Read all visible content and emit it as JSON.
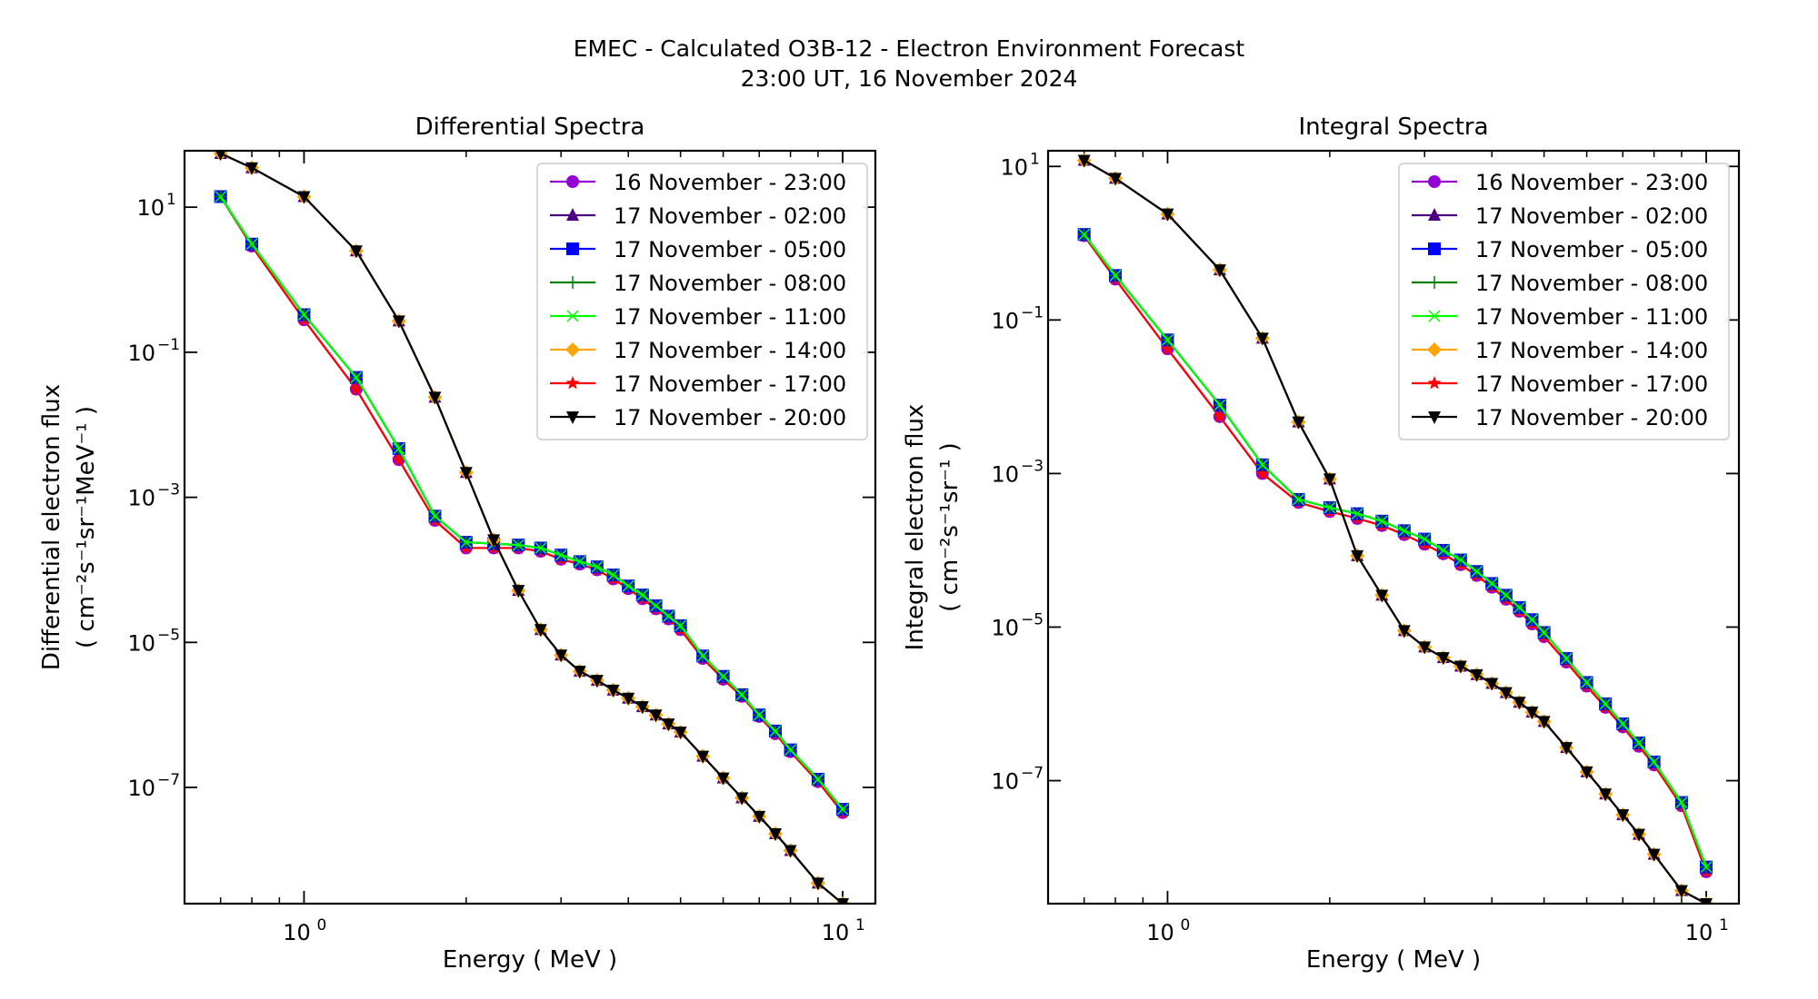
{
  "figure": {
    "title_line1": "EMEC - Calculated O3B-12 - Electron Environment Forecast",
    "title_line2": "23:00 UT, 16 November 2024"
  },
  "series_styles": [
    {
      "name": "16 November - 23:00",
      "color": "#9400d3",
      "marker": "circle"
    },
    {
      "name": "17 November - 02:00",
      "color": "#4b0082",
      "marker": "triangle-up"
    },
    {
      "name": "17 November - 05:00",
      "color": "#0000ff",
      "marker": "square"
    },
    {
      "name": "17 November - 08:00",
      "color": "#008000",
      "marker": "plus"
    },
    {
      "name": "17 November - 11:00",
      "color": "#00ff00",
      "marker": "x"
    },
    {
      "name": "17 November - 14:00",
      "color": "#ffa500",
      "marker": "diamond"
    },
    {
      "name": "17 November - 17:00",
      "color": "#ff0000",
      "marker": "star"
    },
    {
      "name": "17 November - 20:00",
      "color": "#000000",
      "marker": "triangle-down"
    }
  ],
  "chart_data": [
    {
      "type": "line",
      "title": "Differential Spectra",
      "xlabel": "Energy ( MeV )",
      "ylabel_line1": "Differential electron flux",
      "ylabel_line2": "( cm⁻²s⁻¹sr⁻¹MeV⁻¹ )",
      "xscale": "log",
      "yscale": "log",
      "xlim": [
        0.6,
        11.5
      ],
      "ylim": [
        2.5e-09,
        60
      ],
      "xticks": [
        {
          "value": 1,
          "label": "10",
          "exp": "0"
        },
        {
          "value": 10,
          "label": "10",
          "exp": "1"
        }
      ],
      "yticks": [
        {
          "value": 10,
          "label": "10",
          "exp": "1"
        },
        {
          "value": 0.1,
          "label": "10",
          "exp": "−1"
        },
        {
          "value": 0.001,
          "label": "10",
          "exp": "−3"
        },
        {
          "value": 1e-05,
          "label": "10",
          "exp": "−5"
        },
        {
          "value": 1e-07,
          "label": "10",
          "exp": "−7"
        }
      ],
      "legend_position": "upper-right",
      "groups": [
        {
          "members": [
            "16 November - 23:00",
            "17 November - 17:00"
          ],
          "x": [
            0.7,
            0.8,
            1.0,
            1.25,
            1.5,
            1.75,
            2.0,
            2.25,
            2.5,
            2.75,
            3.0,
            3.25,
            3.5,
            3.75,
            4.0,
            4.25,
            4.5,
            4.75,
            5.0,
            5.5,
            6.0,
            6.5,
            7.0,
            7.5,
            8.0,
            9.0,
            10.0
          ],
          "y": [
            14,
            2.9,
            0.28,
            0.031,
            0.0033,
            0.00048,
            0.0002,
            0.0002,
            0.0002,
            0.00018,
            0.00014,
            0.00012,
            0.0001,
            7.5e-05,
            5.5e-05,
            4e-05,
            2.9e-05,
            2.1e-05,
            1.5e-05,
            6e-06,
            3.1e-06,
            1.8e-06,
            9.5e-07,
            5.5e-07,
            3.1e-07,
            1.2e-07,
            4.5e-08
          ]
        },
        {
          "members": [
            "17 November - 05:00",
            "17 November - 08:00",
            "17 November - 11:00"
          ],
          "x": [
            0.7,
            0.8,
            1.0,
            1.25,
            1.5,
            1.75,
            2.0,
            2.25,
            2.5,
            2.75,
            3.0,
            3.25,
            3.5,
            3.75,
            4.0,
            4.25,
            4.5,
            4.75,
            5.0,
            5.5,
            6.0,
            6.5,
            7.0,
            7.5,
            8.0,
            9.0,
            10.0
          ],
          "y": [
            14,
            3.1,
            0.33,
            0.045,
            0.0047,
            0.00055,
            0.00024,
            0.00023,
            0.00022,
            0.0002,
            0.00016,
            0.00013,
            0.00011,
            8.5e-05,
            6e-05,
            4.5e-05,
            3.2e-05,
            2.3e-05,
            1.7e-05,
            6.5e-06,
            3.4e-06,
            1.9e-06,
            1e-06,
            6e-07,
            3.3e-07,
            1.3e-07,
            5e-08
          ]
        },
        {
          "members": [
            "17 November - 02:00",
            "17 November - 14:00",
            "17 November - 20:00"
          ],
          "x": [
            0.7,
            0.8,
            1.0,
            1.25,
            1.5,
            1.75,
            2.0,
            2.25,
            2.5,
            2.75,
            3.0,
            3.25,
            3.5,
            3.75,
            4.0,
            4.25,
            4.5,
            4.75,
            5.0,
            5.5,
            6.0,
            6.5,
            7.0,
            7.5,
            8.0,
            9.0,
            10.0
          ],
          "y": [
            55,
            35,
            14,
            2.5,
            0.27,
            0.024,
            0.0022,
            0.00026,
            5.2e-05,
            1.5e-05,
            6.7e-06,
            4e-06,
            3e-06,
            2.2e-06,
            1.7e-06,
            1.3e-06,
            1e-06,
            7.5e-07,
            5.8e-07,
            2.7e-07,
            1.35e-07,
            7.2e-08,
            4e-08,
            2.3e-08,
            1.35e-08,
            4.8e-09,
            2.5e-09
          ]
        }
      ]
    },
    {
      "type": "line",
      "title": "Integral Spectra",
      "xlabel": "Energy ( MeV )",
      "ylabel_line1": "Integral electron flux",
      "ylabel_line2": "( cm⁻²s⁻¹sr⁻¹ )",
      "xscale": "log",
      "yscale": "log",
      "xlim": [
        0.6,
        11.5
      ],
      "ylim": [
        2.5e-09,
        16
      ],
      "xticks": [
        {
          "value": 1,
          "label": "10",
          "exp": "0"
        },
        {
          "value": 10,
          "label": "10",
          "exp": "1"
        }
      ],
      "yticks": [
        {
          "value": 10,
          "label": "10",
          "exp": "1"
        },
        {
          "value": 0.1,
          "label": "10",
          "exp": "−1"
        },
        {
          "value": 0.001,
          "label": "10",
          "exp": "−3"
        },
        {
          "value": 1e-05,
          "label": "10",
          "exp": "−5"
        },
        {
          "value": 1e-07,
          "label": "10",
          "exp": "−7"
        }
      ],
      "legend_position": "upper-right",
      "groups": [
        {
          "members": [
            "16 November - 23:00",
            "17 November - 17:00"
          ],
          "x": [
            0.7,
            0.8,
            1.0,
            1.25,
            1.5,
            1.75,
            2.0,
            2.25,
            2.5,
            2.75,
            3.0,
            3.25,
            3.5,
            3.75,
            4.0,
            4.25,
            4.5,
            4.75,
            5.0,
            5.5,
            6.0,
            6.5,
            7.0,
            7.5,
            8.0,
            9.0,
            10.0
          ],
          "y": [
            1.25,
            0.34,
            0.042,
            0.0055,
            0.001,
            0.00042,
            0.00032,
            0.00026,
            0.00021,
            0.00016,
            0.00012,
            9e-05,
            6.5e-05,
            4.7e-05,
            3.3e-05,
            2.3e-05,
            1.6e-05,
            1.1e-05,
            7.5e-06,
            3.5e-06,
            1.7e-06,
            9e-07,
            5e-07,
            2.8e-07,
            1.6e-07,
            4.7e-08,
            6.5e-09
          ]
        },
        {
          "members": [
            "17 November - 05:00",
            "17 November - 08:00",
            "17 November - 11:00"
          ],
          "x": [
            0.7,
            0.8,
            1.0,
            1.25,
            1.5,
            1.75,
            2.0,
            2.25,
            2.5,
            2.75,
            3.0,
            3.25,
            3.5,
            3.75,
            4.0,
            4.25,
            4.5,
            4.75,
            5.0,
            5.5,
            6.0,
            6.5,
            7.0,
            7.5,
            8.0,
            9.0,
            10.0
          ],
          "y": [
            1.3,
            0.38,
            0.055,
            0.0078,
            0.0013,
            0.00046,
            0.00036,
            0.0003,
            0.00024,
            0.00018,
            0.00014,
            0.0001,
            7.5e-05,
            5.3e-05,
            3.7e-05,
            2.6e-05,
            1.8e-05,
            1.25e-05,
            8.5e-06,
            3.9e-06,
            1.9e-06,
            1e-06,
            5.5e-07,
            3.1e-07,
            1.75e-07,
            5.2e-08,
            7.5e-09
          ]
        },
        {
          "members": [
            "17 November - 02:00",
            "17 November - 14:00",
            "17 November - 20:00"
          ],
          "x": [
            0.7,
            0.8,
            1.0,
            1.25,
            1.5,
            1.75,
            2.0,
            2.25,
            2.5,
            2.75,
            3.0,
            3.25,
            3.5,
            3.75,
            4.0,
            4.25,
            4.5,
            4.75,
            5.0,
            5.5,
            6.0,
            6.5,
            7.0,
            7.5,
            8.0,
            9.0,
            10.0
          ],
          "y": [
            12,
            7,
            2.4,
            0.45,
            0.058,
            0.0047,
            0.00085,
            8.5e-05,
            2.6e-05,
            9e-06,
            5.5e-06,
            4e-06,
            3.1e-06,
            2.4e-06,
            1.85e-06,
            1.4e-06,
            1.05e-06,
            7.8e-07,
            5.9e-07,
            2.7e-07,
            1.3e-07,
            6.7e-08,
            3.6e-08,
            2e-08,
            1.1e-08,
            3.7e-09,
            2.5e-09
          ]
        }
      ]
    }
  ]
}
